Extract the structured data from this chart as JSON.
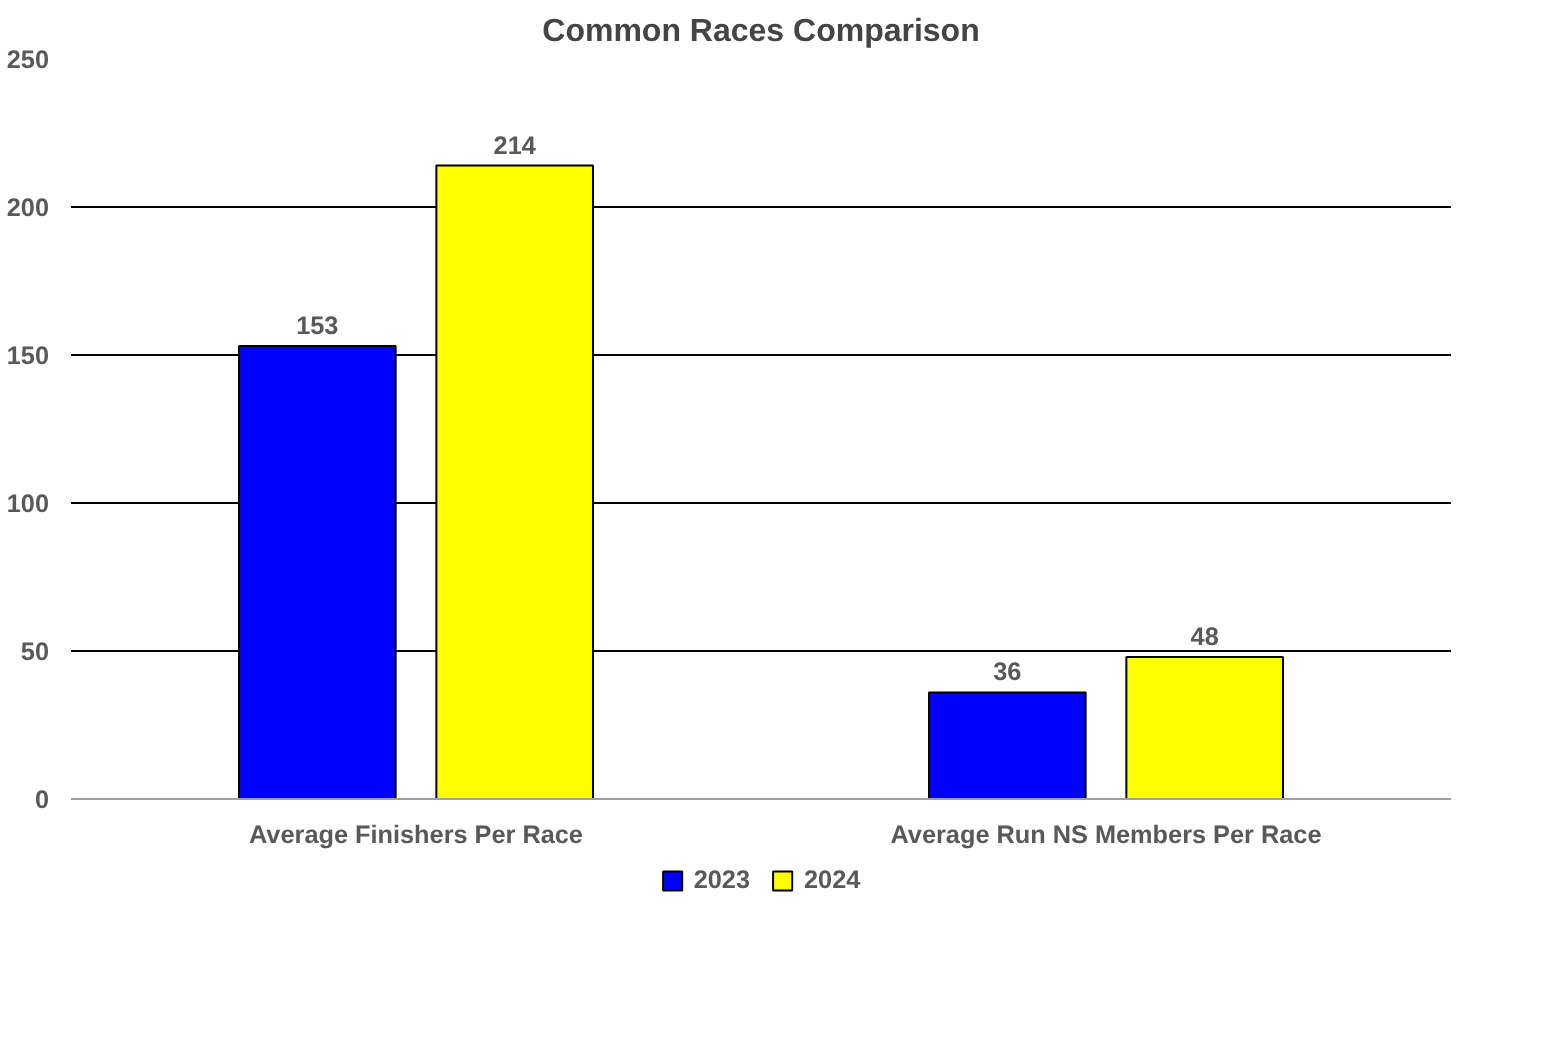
{
  "chart_data": {
    "type": "bar",
    "title": "Common Races Comparison",
    "categories": [
      "Average Finishers Per Race",
      "Average Run NS Members Per Race"
    ],
    "series": [
      {
        "name": "2023",
        "color": "#0000ff",
        "values": [
          153,
          36
        ]
      },
      {
        "name": "2024",
        "color": "#ffff00",
        "values": [
          214,
          48
        ]
      }
    ],
    "ylim": [
      0,
      250
    ],
    "yticks": [
      0,
      50,
      100,
      150,
      200,
      250
    ],
    "grid": "y",
    "legend": "bottom",
    "data_labels": true
  }
}
